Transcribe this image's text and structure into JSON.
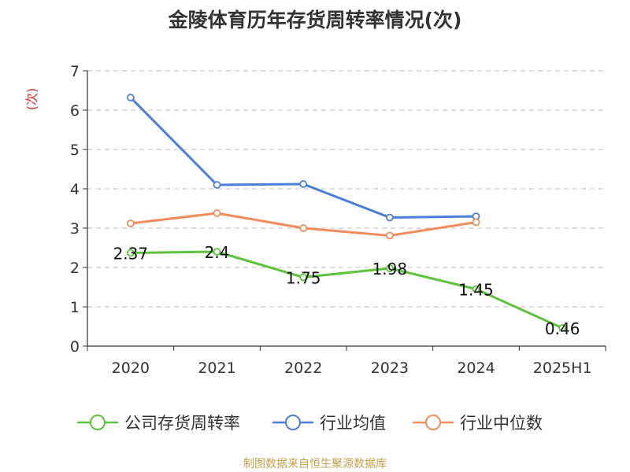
{
  "title": "金陵体育历年存货周转率情况(次)",
  "source": "制图数据来自恒生聚源数据库",
  "chart_data": {
    "type": "line",
    "title": "金陵体育历年存货周转率情况(次)",
    "ylabel": "(次)",
    "xlabel": "",
    "ylim": [
      0,
      7
    ],
    "yticks": [
      0,
      1,
      2,
      3,
      4,
      5,
      6,
      7
    ],
    "grid": true,
    "legend_position": "bottom",
    "categories": [
      "2020",
      "2021",
      "2022",
      "2023",
      "2024",
      "2025H1"
    ],
    "series": [
      {
        "name": "公司存货周转率",
        "color": "#5cc33a",
        "values": [
          2.37,
          2.4,
          1.75,
          1.98,
          1.45,
          0.46
        ],
        "labels": [
          "2.37",
          "2.4",
          "1.75",
          "1.98",
          "1.45",
          "0.46"
        ]
      },
      {
        "name": "行业均值",
        "color": "#4a7fd8",
        "values": [
          6.32,
          4.1,
          4.12,
          3.27,
          3.3,
          null
        ]
      },
      {
        "name": "行业中位数",
        "color": "#f28c5c",
        "values": [
          3.12,
          3.38,
          3.0,
          2.81,
          3.15,
          null
        ]
      }
    ]
  }
}
